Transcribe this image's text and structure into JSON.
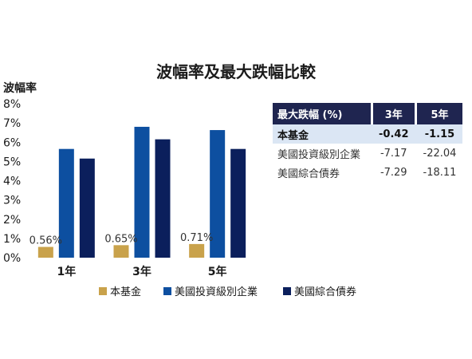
{
  "chart_data": {
    "type": "bar",
    "title": "波幅率及最大跌幅比較",
    "ylabel": "波幅率",
    "categories": [
      "1年",
      "3年",
      "5年"
    ],
    "ylim": [
      0,
      8
    ],
    "yticks": [
      "0%",
      "1%",
      "2%",
      "3%",
      "4%",
      "5%",
      "6%",
      "7%",
      "8%"
    ],
    "grid": false,
    "legend_position": "bottom",
    "series": [
      {
        "name": "本基金",
        "values": [
          0.56,
          0.65,
          0.71
        ],
        "labels": [
          "0.56%",
          "0.65%",
          "0.71%"
        ],
        "color": "#c9a24b"
      },
      {
        "name": "美國投資級別企業",
        "values": [
          5.65,
          6.8,
          6.63
        ],
        "color": "#0d4fa0"
      },
      {
        "name": "美國綜合債券",
        "values": [
          5.15,
          6.15,
          5.65
        ],
        "color": "#0b1f5c"
      }
    ]
  },
  "table": {
    "headers": [
      "最大跌幅 (%)",
      "3年",
      "5年"
    ],
    "rows": [
      {
        "label": "本基金",
        "values": [
          "-0.42",
          "-1.15"
        ],
        "highlight": true
      },
      {
        "label": "美國投資級別企業",
        "values": [
          "-7.17",
          "-22.04"
        ],
        "highlight": false
      },
      {
        "label": "美國綜合債券",
        "values": [
          "-7.29",
          "-18.11"
        ],
        "highlight": false
      }
    ]
  }
}
